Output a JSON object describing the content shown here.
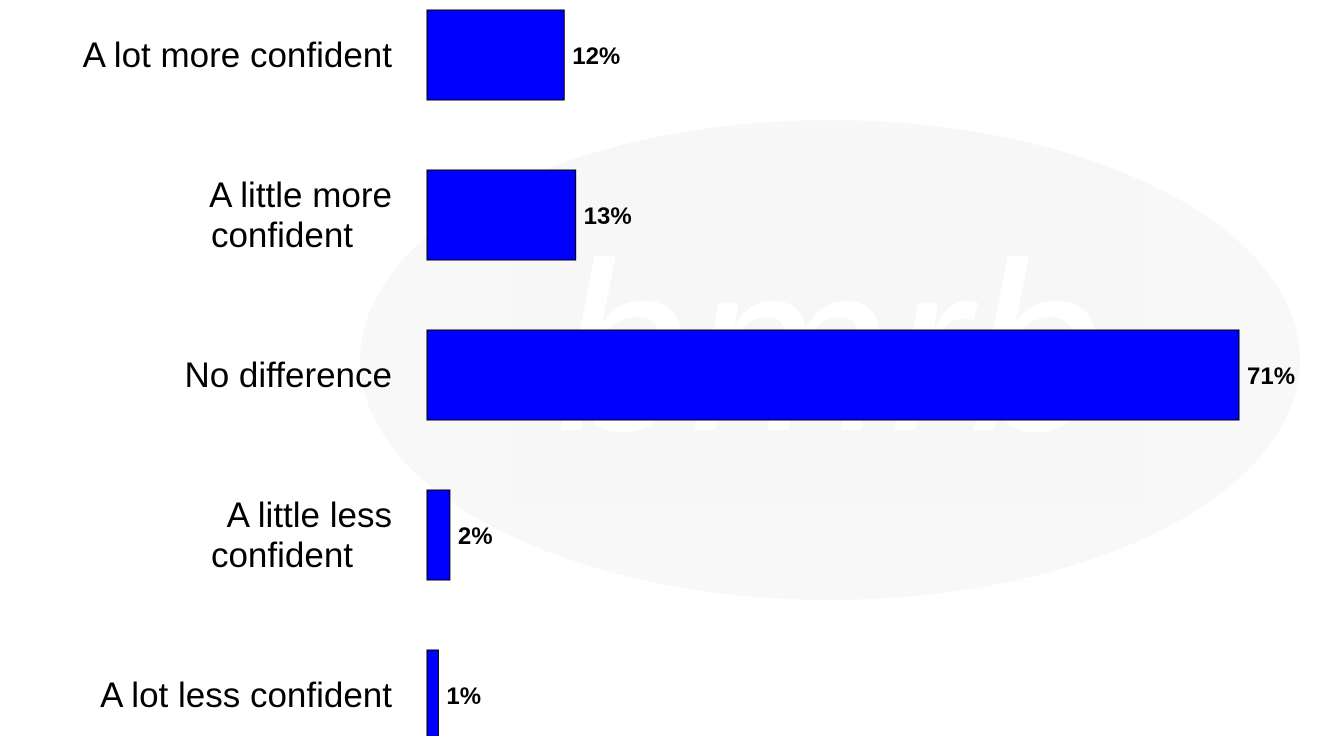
{
  "chart_data": {
    "type": "bar",
    "orientation": "horizontal",
    "categories": [
      [
        "A lot more confident"
      ],
      [
        "A little more",
        "confident"
      ],
      [
        "No difference"
      ],
      [
        "A little less",
        "confident"
      ],
      [
        "A lot less confident"
      ]
    ],
    "values": [
      12,
      13,
      71,
      2,
      1
    ],
    "value_labels": [
      "12%",
      "13%",
      "71%",
      "2%",
      "1%"
    ],
    "unit": "%",
    "xlim": [
      0,
      71
    ],
    "grid": false,
    "legend": "none",
    "bar_color": "#0000ff",
    "watermark_text": "bmrb"
  }
}
